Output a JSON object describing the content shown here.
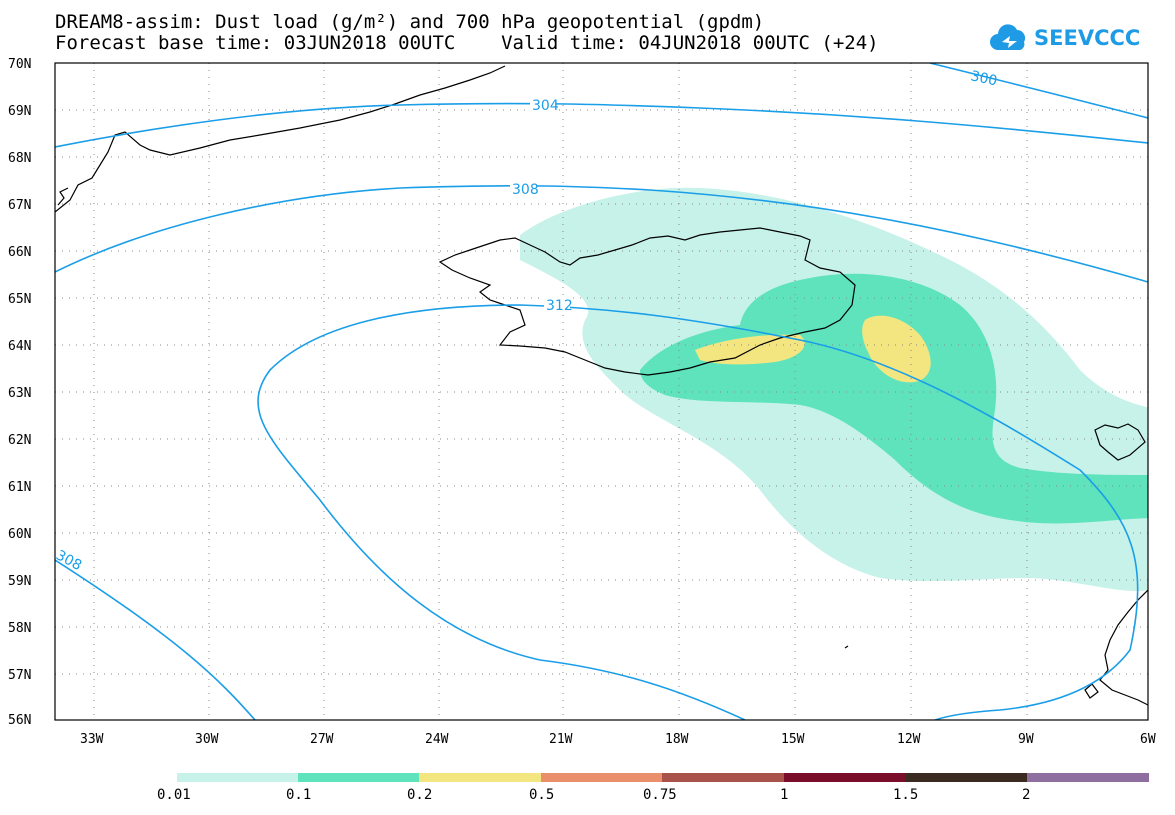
{
  "title": {
    "line1": "DREAM8-assim: Dust load (g/m²) and 700 hPa geopotential (gpdm)",
    "line2": "Forecast base time: 03JUN2018 00UTC    Valid time: 04JUN2018 00UTC (+24)"
  },
  "logo": {
    "text": "SEEVCCC",
    "icon": "cloud-icon"
  },
  "map": {
    "lat_labels": [
      "70N",
      "69N",
      "68N",
      "67N",
      "66N",
      "65N",
      "64N",
      "63N",
      "62N",
      "61N",
      "60N",
      "59N",
      "58N",
      "57N",
      "56N"
    ],
    "lon_labels": [
      "33W",
      "30W",
      "27W",
      "24W",
      "21W",
      "18W",
      "15W",
      "12W",
      "9W",
      "6W"
    ],
    "contour_labels": [
      "304",
      "308",
      "312",
      "300",
      "308"
    ],
    "grid": true
  },
  "colorbar": {
    "labels": [
      "0.01",
      "0.1",
      "0.2",
      "0.5",
      "0.75",
      "1",
      "1.5",
      "2"
    ],
    "colors": [
      "#c6f2ea",
      "#5ee3bc",
      "#f3e681",
      "#e98f6c",
      "#a9524a",
      "#7a0e2a",
      "#3a2a20",
      "#8f6ea0"
    ]
  },
  "colors": {
    "contour": "#1a9ee8",
    "coast": "#000000"
  }
}
